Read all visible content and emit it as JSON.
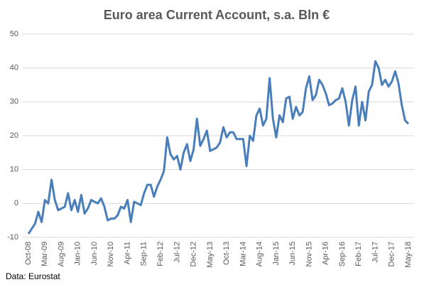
{
  "chart_data": {
    "type": "line",
    "title": "Euro area Current Account, s.a. Bln €",
    "source": "Data: Eurostat",
    "categories": [
      "Oct-08",
      null,
      null,
      null,
      null,
      "Mar-09",
      null,
      null,
      null,
      null,
      "Aug-09",
      null,
      null,
      null,
      null,
      "Jan-10",
      null,
      null,
      null,
      null,
      "Jun-10",
      null,
      null,
      null,
      null,
      "Nov-10",
      null,
      null,
      null,
      null,
      "Apr-11",
      null,
      null,
      null,
      null,
      "Sep-11",
      null,
      null,
      null,
      null,
      "Feb-12",
      null,
      null,
      null,
      null,
      "Jul-12",
      null,
      null,
      null,
      null,
      "Dec-12",
      null,
      null,
      null,
      null,
      "May-13",
      null,
      null,
      null,
      null,
      "Oct-13",
      null,
      null,
      null,
      null,
      "Mar-14",
      null,
      null,
      null,
      null,
      "Aug-14",
      null,
      null,
      null,
      null,
      "Jan-15",
      null,
      null,
      null,
      null,
      "Jun-15",
      null,
      null,
      null,
      null,
      "Nov-15",
      null,
      null,
      null,
      null,
      "Apr-16",
      null,
      null,
      null,
      null,
      "Sep-16",
      null,
      null,
      null,
      null,
      "Feb-17",
      null,
      null,
      null,
      null,
      "Jul-17",
      null,
      null,
      null,
      null,
      "Dec-17",
      null,
      null,
      null,
      null,
      "May-18"
    ],
    "values": [
      -9,
      -7.5,
      -6,
      -2.5,
      -5.5,
      1,
      0,
      7,
      1,
      -2,
      -1.5,
      -1,
      3,
      -2,
      1,
      -2.5,
      2.5,
      -3,
      -1.5,
      1,
      0.5,
      0,
      1.5,
      -1,
      -5,
      -4.5,
      -4.5,
      -3.5,
      -1,
      -1.5,
      1,
      -5.5,
      0.5,
      0,
      -0.5,
      3,
      5.5,
      5.5,
      2,
      5,
      7,
      9.5,
      19.5,
      14.5,
      13,
      14,
      10,
      15,
      17.5,
      12.5,
      16,
      25,
      17,
      19,
      21.5,
      15.5,
      16,
      16.5,
      18,
      22.5,
      19.5,
      21,
      21,
      19,
      19,
      19,
      11,
      20,
      18.5,
      26,
      28,
      23,
      25,
      37,
      25,
      19.5,
      26,
      24,
      31,
      31.5,
      25,
      28.5,
      26,
      27,
      34,
      37.5,
      30.5,
      32,
      36.5,
      35,
      32.5,
      29,
      29.5,
      30.5,
      31,
      34,
      30,
      23,
      30.5,
      34.5,
      23,
      30,
      24.5,
      33,
      35,
      42,
      40,
      35,
      36.5,
      34.5,
      36,
      39,
      35.5,
      29,
      24.5,
      23.5
    ],
    "color": "#4a7ebb",
    "ylim": [
      -10,
      50
    ],
    "yticks": [
      -10,
      0,
      10,
      20,
      30,
      40,
      50
    ],
    "grid": true
  }
}
